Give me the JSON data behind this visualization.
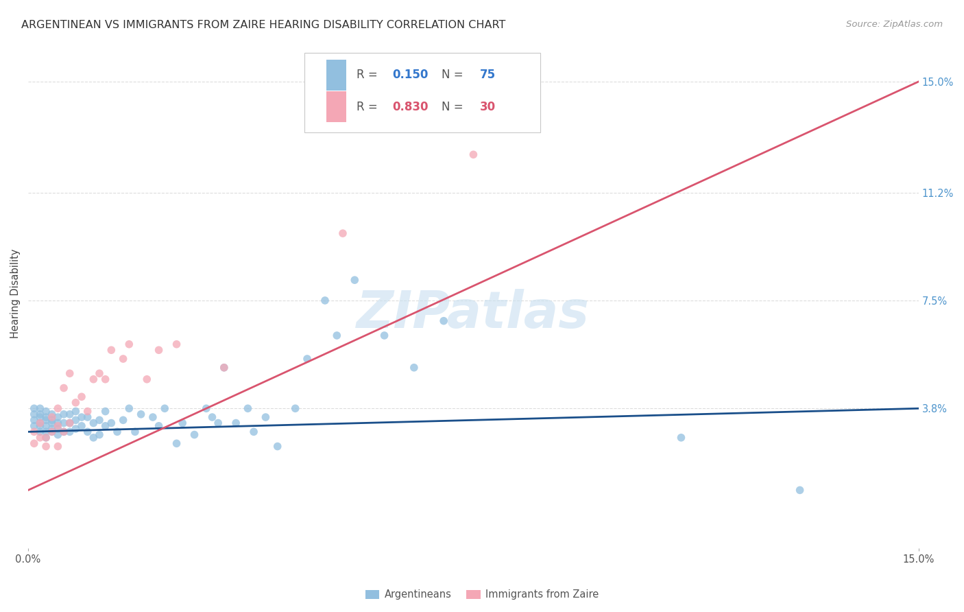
{
  "title": "ARGENTINEAN VS IMMIGRANTS FROM ZAIRE HEARING DISABILITY CORRELATION CHART",
  "source": "Source: ZipAtlas.com",
  "ylabel": "Hearing Disability",
  "right_yticks": [
    "15.0%",
    "11.2%",
    "7.5%",
    "3.8%"
  ],
  "right_ytick_vals": [
    0.15,
    0.112,
    0.075,
    0.038
  ],
  "xmin": 0.0,
  "xmax": 0.15,
  "ymin": -0.01,
  "ymax": 0.165,
  "watermark": "ZIPatlas",
  "color_blue": "#92bfdf",
  "color_pink": "#f4a7b5",
  "color_line_blue": "#1a4f8a",
  "color_line_pink": "#d9546e",
  "blue_line_start": 0.03,
  "blue_line_end": 0.038,
  "pink_line_start": 0.01,
  "pink_line_end": 0.15,
  "argentineans_x": [
    0.001,
    0.001,
    0.001,
    0.001,
    0.002,
    0.002,
    0.002,
    0.002,
    0.002,
    0.002,
    0.003,
    0.003,
    0.003,
    0.003,
    0.003,
    0.003,
    0.004,
    0.004,
    0.004,
    0.004,
    0.004,
    0.005,
    0.005,
    0.005,
    0.005,
    0.006,
    0.006,
    0.006,
    0.007,
    0.007,
    0.007,
    0.008,
    0.008,
    0.008,
    0.009,
    0.009,
    0.01,
    0.01,
    0.011,
    0.011,
    0.012,
    0.012,
    0.013,
    0.013,
    0.014,
    0.015,
    0.016,
    0.017,
    0.018,
    0.019,
    0.021,
    0.022,
    0.023,
    0.025,
    0.026,
    0.028,
    0.03,
    0.031,
    0.032,
    0.033,
    0.035,
    0.037,
    0.038,
    0.04,
    0.042,
    0.045,
    0.047,
    0.05,
    0.052,
    0.055,
    0.06,
    0.065,
    0.07,
    0.11,
    0.13
  ],
  "argentineans_y": [
    0.032,
    0.034,
    0.036,
    0.038,
    0.03,
    0.032,
    0.033,
    0.035,
    0.036,
    0.038,
    0.028,
    0.03,
    0.032,
    0.034,
    0.035,
    0.037,
    0.03,
    0.031,
    0.033,
    0.034,
    0.036,
    0.029,
    0.031,
    0.033,
    0.035,
    0.03,
    0.033,
    0.036,
    0.03,
    0.033,
    0.036,
    0.031,
    0.034,
    0.037,
    0.032,
    0.035,
    0.03,
    0.035,
    0.028,
    0.033,
    0.029,
    0.034,
    0.032,
    0.037,
    0.033,
    0.03,
    0.034,
    0.038,
    0.03,
    0.036,
    0.035,
    0.032,
    0.038,
    0.026,
    0.033,
    0.029,
    0.038,
    0.035,
    0.033,
    0.052,
    0.033,
    0.038,
    0.03,
    0.035,
    0.025,
    0.038,
    0.055,
    0.075,
    0.063,
    0.082,
    0.063,
    0.052,
    0.068,
    0.028,
    0.01
  ],
  "zaire_x": [
    0.001,
    0.001,
    0.002,
    0.002,
    0.003,
    0.003,
    0.004,
    0.004,
    0.005,
    0.005,
    0.005,
    0.006,
    0.006,
    0.007,
    0.007,
    0.008,
    0.009,
    0.01,
    0.011,
    0.012,
    0.013,
    0.014,
    0.016,
    0.017,
    0.02,
    0.022,
    0.025,
    0.033,
    0.053,
    0.075
  ],
  "zaire_y": [
    0.026,
    0.03,
    0.028,
    0.033,
    0.025,
    0.028,
    0.03,
    0.035,
    0.025,
    0.032,
    0.038,
    0.03,
    0.045,
    0.033,
    0.05,
    0.04,
    0.042,
    0.037,
    0.048,
    0.05,
    0.048,
    0.058,
    0.055,
    0.06,
    0.048,
    0.058,
    0.06,
    0.052,
    0.098,
    0.125
  ]
}
